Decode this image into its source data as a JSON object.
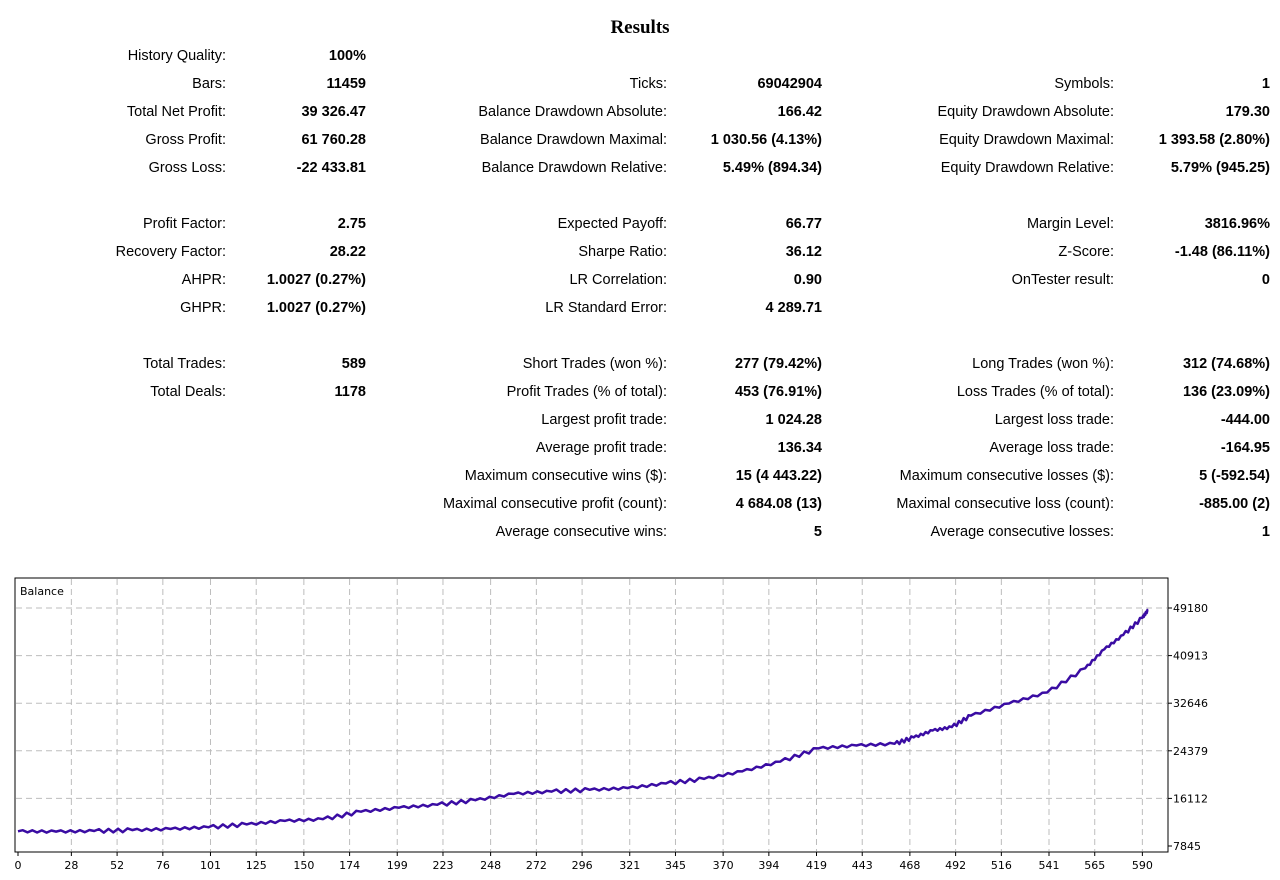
{
  "report": {
    "title": "Results",
    "col0": [
      {
        "row": 0,
        "label": "History Quality:",
        "value": "100%"
      },
      {
        "row": 1,
        "label": "Bars:",
        "value": "11459"
      },
      {
        "row": 2,
        "label": "Total Net Profit:",
        "value": "39 326.47"
      },
      {
        "row": 3,
        "label": "Gross Profit:",
        "value": "61 760.28"
      },
      {
        "row": 4,
        "label": "Gross Loss:",
        "value": "-22 433.81"
      },
      {
        "row": 6,
        "label": "Profit Factor:",
        "value": "2.75"
      },
      {
        "row": 7,
        "label": "Recovery Factor:",
        "value": "28.22"
      },
      {
        "row": 8,
        "label": "AHPR:",
        "value": "1.0027 (0.27%)"
      },
      {
        "row": 9,
        "label": "GHPR:",
        "value": "1.0027 (0.27%)"
      },
      {
        "row": 11,
        "label": "Total Trades:",
        "value": "589"
      },
      {
        "row": 12,
        "label": "Total Deals:",
        "value": "1178"
      }
    ],
    "col1": [
      {
        "row": 1,
        "label": "Ticks:",
        "value": "69042904"
      },
      {
        "row": 2,
        "label": "Balance Drawdown Absolute:",
        "value": "166.42"
      },
      {
        "row": 3,
        "label": "Balance Drawdown Maximal:",
        "value": "1 030.56 (4.13%)"
      },
      {
        "row": 4,
        "label": "Balance Drawdown Relative:",
        "value": "5.49% (894.34)"
      },
      {
        "row": 6,
        "label": "Expected Payoff:",
        "value": "66.77"
      },
      {
        "row": 7,
        "label": "Sharpe Ratio:",
        "value": "36.12"
      },
      {
        "row": 8,
        "label": "LR Correlation:",
        "value": "0.90"
      },
      {
        "row": 9,
        "label": "LR Standard Error:",
        "value": "4 289.71"
      },
      {
        "row": 11,
        "label": "Short Trades (won %):",
        "value": "277 (79.42%)"
      },
      {
        "row": 12,
        "label": "Profit Trades (% of total):",
        "value": "453 (76.91%)"
      },
      {
        "row": 13,
        "label": "Largest profit trade:",
        "value": "1 024.28"
      },
      {
        "row": 14,
        "label": "Average profit trade:",
        "value": "136.34"
      },
      {
        "row": 15,
        "label": "Maximum consecutive wins ($):",
        "value": "15 (4 443.22)"
      },
      {
        "row": 16,
        "label": "Maximal consecutive profit (count):",
        "value": "4 684.08 (13)"
      },
      {
        "row": 17,
        "label": "Average consecutive wins:",
        "value": "5"
      }
    ],
    "col2": [
      {
        "row": 1,
        "label": "Symbols:",
        "value": "1"
      },
      {
        "row": 2,
        "label": "Equity Drawdown Absolute:",
        "value": "179.30"
      },
      {
        "row": 3,
        "label": "Equity Drawdown Maximal:",
        "value": "1 393.58 (2.80%)"
      },
      {
        "row": 4,
        "label": "Equity Drawdown Relative:",
        "value": "5.79% (945.25)"
      },
      {
        "row": 6,
        "label": "Margin Level:",
        "value": "3816.96%"
      },
      {
        "row": 7,
        "label": "Z-Score:",
        "value": "-1.48 (86.11%)"
      },
      {
        "row": 8,
        "label": "OnTester result:",
        "value": "0"
      },
      {
        "row": 11,
        "label": "Long Trades (won %):",
        "value": "312 (74.68%)"
      },
      {
        "row": 12,
        "label": "Loss Trades (% of total):",
        "value": "136 (23.09%)"
      },
      {
        "row": 13,
        "label": "Largest loss trade:",
        "value": "-444.00"
      },
      {
        "row": 14,
        "label": "Average loss trade:",
        "value": "-164.95"
      },
      {
        "row": 15,
        "label": "Maximum consecutive losses ($):",
        "value": "5 (-592.54)"
      },
      {
        "row": 16,
        "label": "Maximal consecutive loss (count):",
        "value": "-885.00 (2)"
      },
      {
        "row": 17,
        "label": "Average consecutive losses:",
        "value": "1"
      }
    ]
  },
  "chart_data": {
    "type": "line",
    "label": "Balance",
    "x_ticks": [
      0,
      28,
      52,
      76,
      101,
      125,
      150,
      174,
      199,
      223,
      248,
      272,
      296,
      321,
      345,
      370,
      394,
      419,
      443,
      468,
      492,
      516,
      541,
      565,
      590
    ],
    "y_ticks": [
      7845,
      16112,
      24379,
      32646,
      40913,
      49180
    ],
    "xlim": [
      0,
      600
    ],
    "ylim": [
      7845,
      49180
    ],
    "grid": true,
    "line_color": "#3a0ca3",
    "series": [
      {
        "name": "Balance",
        "x": [
          0,
          20,
          40,
          60,
          80,
          100,
          120,
          140,
          160,
          180,
          200,
          220,
          240,
          260,
          280,
          300,
          320,
          340,
          360,
          380,
          400,
          420,
          440,
          460,
          470,
          480,
          490,
          500,
          520,
          540,
          560,
          570,
          580,
          590,
          593
        ],
        "y": [
          10400,
          10350,
          10450,
          10600,
          10800,
          11100,
          11600,
          12200,
          12500,
          13800,
          14500,
          15000,
          15800,
          16900,
          17300,
          17600,
          17900,
          18700,
          19500,
          20800,
          22500,
          24800,
          25300,
          25600,
          26700,
          27900,
          28500,
          30500,
          32600,
          34500,
          38700,
          42000,
          44500,
          47500,
          48800
        ]
      }
    ]
  }
}
